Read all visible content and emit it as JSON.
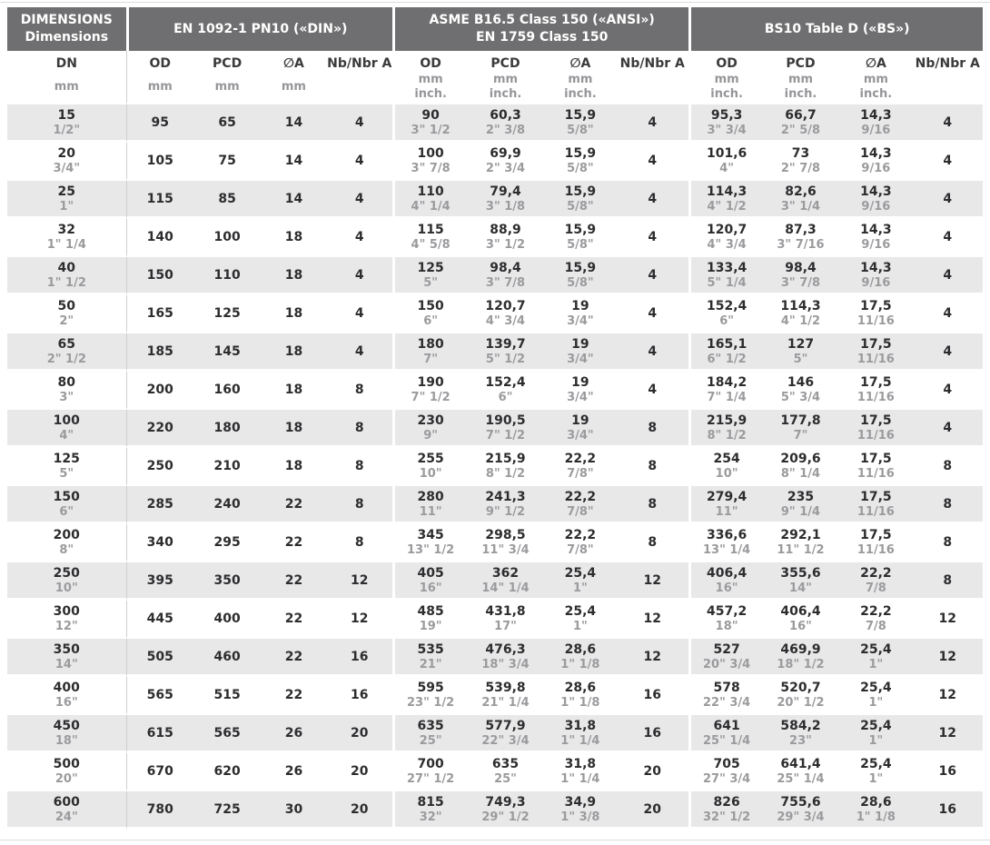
{
  "header": {
    "dim_line1": "DIMENSIONS",
    "dim_line2": "Dimensions",
    "group_din": "EN 1092-1 PN10 («DIN»)",
    "group_ansi_line1": "ASME B16.5 Class 150 («ANSI»)",
    "group_ansi_line2": "EN 1759 Class 150",
    "group_bs": "BS10 Table D («BS»)",
    "columns": [
      {
        "group": "dim",
        "key": "dn",
        "label": "DN",
        "units": [
          "mm"
        ]
      },
      {
        "group": "din",
        "key": "od",
        "label": "OD",
        "units": [
          "mm"
        ]
      },
      {
        "group": "din",
        "key": "pcd",
        "label": "PCD",
        "units": [
          "mm"
        ]
      },
      {
        "group": "din",
        "key": "a",
        "label": "∅A",
        "units": [
          "mm"
        ]
      },
      {
        "group": "din",
        "key": "nb",
        "label": "Nb/Nbr A",
        "units": []
      },
      {
        "group": "asme",
        "key": "od",
        "label": "OD",
        "units": [
          "mm",
          "inch."
        ]
      },
      {
        "group": "asme",
        "key": "pcd",
        "label": "PCD",
        "units": [
          "mm",
          "inch."
        ]
      },
      {
        "group": "asme",
        "key": "a",
        "label": "∅A",
        "units": [
          "mm",
          "inch."
        ]
      },
      {
        "group": "asme",
        "key": "nb",
        "label": "Nb/Nbr A",
        "units": []
      },
      {
        "group": "bs",
        "key": "od",
        "label": "OD",
        "units": [
          "mm",
          "inch."
        ]
      },
      {
        "group": "bs",
        "key": "pcd",
        "label": "PCD",
        "units": [
          "mm",
          "inch."
        ]
      },
      {
        "group": "bs",
        "key": "a",
        "label": "∅A",
        "units": [
          "mm",
          "inch."
        ]
      },
      {
        "group": "bs",
        "key": "nb",
        "label": "Nb/Nbr A",
        "units": []
      }
    ]
  },
  "colors": {
    "header_bg": "#6f6f71",
    "header_text": "#ffffff",
    "stripe_bg": "#e8e8e9",
    "value_text": "#2d2d2f",
    "inch_text": "#9b9b9e"
  },
  "table": {
    "rows": [
      {
        "dn": [
          "15",
          "1/2\""
        ],
        "din": [
          "95",
          "65",
          "14",
          "4"
        ],
        "asme": [
          [
            "90",
            "3\" 1/2"
          ],
          [
            "60,3",
            "2\" 3/8"
          ],
          [
            "15,9",
            "5/8\""
          ],
          "4"
        ],
        "bs": [
          [
            "95,3",
            "3\" 3/4"
          ],
          [
            "66,7",
            "2\" 5/8"
          ],
          [
            "14,3",
            "9/16"
          ],
          "4"
        ]
      },
      {
        "dn": [
          "20",
          "3/4\""
        ],
        "din": [
          "105",
          "75",
          "14",
          "4"
        ],
        "asme": [
          [
            "100",
            "3\" 7/8"
          ],
          [
            "69,9",
            "2\" 3/4"
          ],
          [
            "15,9",
            "5/8\""
          ],
          "4"
        ],
        "bs": [
          [
            "101,6",
            "4\""
          ],
          [
            "73",
            "2\" 7/8"
          ],
          [
            "14,3",
            "9/16"
          ],
          "4"
        ]
      },
      {
        "dn": [
          "25",
          "1\""
        ],
        "din": [
          "115",
          "85",
          "14",
          "4"
        ],
        "asme": [
          [
            "110",
            "4\" 1/4"
          ],
          [
            "79,4",
            "3\" 1/8"
          ],
          [
            "15,9",
            "5/8\""
          ],
          "4"
        ],
        "bs": [
          [
            "114,3",
            "4\" 1/2"
          ],
          [
            "82,6",
            "3\" 1/4"
          ],
          [
            "14,3",
            "9/16"
          ],
          "4"
        ]
      },
      {
        "dn": [
          "32",
          "1\" 1/4"
        ],
        "din": [
          "140",
          "100",
          "18",
          "4"
        ],
        "asme": [
          [
            "115",
            "4\" 5/8"
          ],
          [
            "88,9",
            "3\" 1/2"
          ],
          [
            "15,9",
            "5/8\""
          ],
          "4"
        ],
        "bs": [
          [
            "120,7",
            "4\" 3/4"
          ],
          [
            "87,3",
            "3\" 7/16"
          ],
          [
            "14,3",
            "9/16"
          ],
          "4"
        ]
      },
      {
        "dn": [
          "40",
          "1\" 1/2"
        ],
        "din": [
          "150",
          "110",
          "18",
          "4"
        ],
        "asme": [
          [
            "125",
            "5\""
          ],
          [
            "98,4",
            "3\" 7/8"
          ],
          [
            "15,9",
            "5/8\""
          ],
          "4"
        ],
        "bs": [
          [
            "133,4",
            "5\" 1/4"
          ],
          [
            "98,4",
            "3\" 7/8"
          ],
          [
            "14,3",
            "9/16"
          ],
          "4"
        ]
      },
      {
        "dn": [
          "50",
          "2\""
        ],
        "din": [
          "165",
          "125",
          "18",
          "4"
        ],
        "asme": [
          [
            "150",
            "6\""
          ],
          [
            "120,7",
            "4\" 3/4"
          ],
          [
            "19",
            "3/4\""
          ],
          "4"
        ],
        "bs": [
          [
            "152,4",
            "6\""
          ],
          [
            "114,3",
            "4\" 1/2"
          ],
          [
            "17,5",
            "11/16"
          ],
          "4"
        ]
      },
      {
        "dn": [
          "65",
          "2\" 1/2"
        ],
        "din": [
          "185",
          "145",
          "18",
          "4"
        ],
        "asme": [
          [
            "180",
            "7\""
          ],
          [
            "139,7",
            "5\" 1/2"
          ],
          [
            "19",
            "3/4\""
          ],
          "4"
        ],
        "bs": [
          [
            "165,1",
            "6\" 1/2"
          ],
          [
            "127",
            "5\""
          ],
          [
            "17,5",
            "11/16"
          ],
          "4"
        ]
      },
      {
        "dn": [
          "80",
          "3\""
        ],
        "din": [
          "200",
          "160",
          "18",
          "8"
        ],
        "asme": [
          [
            "190",
            "7\" 1/2"
          ],
          [
            "152,4",
            "6\""
          ],
          [
            "19",
            "3/4\""
          ],
          "4"
        ],
        "bs": [
          [
            "184,2",
            "7\" 1/4"
          ],
          [
            "146",
            "5\" 3/4"
          ],
          [
            "17,5",
            "11/16"
          ],
          "4"
        ]
      },
      {
        "dn": [
          "100",
          "4\""
        ],
        "din": [
          "220",
          "180",
          "18",
          "8"
        ],
        "asme": [
          [
            "230",
            "9\""
          ],
          [
            "190,5",
            "7\" 1/2"
          ],
          [
            "19",
            "3/4\""
          ],
          "8"
        ],
        "bs": [
          [
            "215,9",
            "8\" 1/2"
          ],
          [
            "177,8",
            "7\""
          ],
          [
            "17,5",
            "11/16"
          ],
          "4"
        ]
      },
      {
        "dn": [
          "125",
          "5\""
        ],
        "din": [
          "250",
          "210",
          "18",
          "8"
        ],
        "asme": [
          [
            "255",
            "10\""
          ],
          [
            "215,9",
            "8\" 1/2"
          ],
          [
            "22,2",
            "7/8\""
          ],
          "8"
        ],
        "bs": [
          [
            "254",
            "10\""
          ],
          [
            "209,6",
            "8\" 1/4"
          ],
          [
            "17,5",
            "11/16"
          ],
          "8"
        ]
      },
      {
        "dn": [
          "150",
          "6\""
        ],
        "din": [
          "285",
          "240",
          "22",
          "8"
        ],
        "asme": [
          [
            "280",
            "11\""
          ],
          [
            "241,3",
            "9\" 1/2"
          ],
          [
            "22,2",
            "7/8\""
          ],
          "8"
        ],
        "bs": [
          [
            "279,4",
            "11\""
          ],
          [
            "235",
            "9\" 1/4"
          ],
          [
            "17,5",
            "11/16"
          ],
          "8"
        ]
      },
      {
        "dn": [
          "200",
          "8\""
        ],
        "din": [
          "340",
          "295",
          "22",
          "8"
        ],
        "asme": [
          [
            "345",
            "13\" 1/2"
          ],
          [
            "298,5",
            "11\" 3/4"
          ],
          [
            "22,2",
            "7/8\""
          ],
          "8"
        ],
        "bs": [
          [
            "336,6",
            "13\" 1/4"
          ],
          [
            "292,1",
            "11\" 1/2"
          ],
          [
            "17,5",
            "11/16"
          ],
          "8"
        ]
      },
      {
        "dn": [
          "250",
          "10\""
        ],
        "din": [
          "395",
          "350",
          "22",
          "12"
        ],
        "asme": [
          [
            "405",
            "16\""
          ],
          [
            "362",
            "14\" 1/4"
          ],
          [
            "25,4",
            "1\""
          ],
          "12"
        ],
        "bs": [
          [
            "406,4",
            "16\""
          ],
          [
            "355,6",
            "14\""
          ],
          [
            "22,2",
            "7/8"
          ],
          "8"
        ]
      },
      {
        "dn": [
          "300",
          "12\""
        ],
        "din": [
          "445",
          "400",
          "22",
          "12"
        ],
        "asme": [
          [
            "485",
            "19\""
          ],
          [
            "431,8",
            "17\""
          ],
          [
            "25,4",
            "1\""
          ],
          "12"
        ],
        "bs": [
          [
            "457,2",
            "18\""
          ],
          [
            "406,4",
            "16\""
          ],
          [
            "22,2",
            "7/8"
          ],
          "12"
        ]
      },
      {
        "dn": [
          "350",
          "14\""
        ],
        "din": [
          "505",
          "460",
          "22",
          "16"
        ],
        "asme": [
          [
            "535",
            "21\""
          ],
          [
            "476,3",
            "18\" 3/4"
          ],
          [
            "28,6",
            "1\" 1/8"
          ],
          "12"
        ],
        "bs": [
          [
            "527",
            "20\" 3/4"
          ],
          [
            "469,9",
            "18\" 1/2"
          ],
          [
            "25,4",
            "1\""
          ],
          "12"
        ]
      },
      {
        "dn": [
          "400",
          "16\""
        ],
        "din": [
          "565",
          "515",
          "22",
          "16"
        ],
        "asme": [
          [
            "595",
            "23\" 1/2"
          ],
          [
            "539,8",
            "21\" 1/4"
          ],
          [
            "28,6",
            "1\" 1/8"
          ],
          "16"
        ],
        "bs": [
          [
            "578",
            "22\" 3/4"
          ],
          [
            "520,7",
            "20\" 1/2"
          ],
          [
            "25,4",
            "1\""
          ],
          "12"
        ]
      },
      {
        "dn": [
          "450",
          "18\""
        ],
        "din": [
          "615",
          "565",
          "26",
          "20"
        ],
        "asme": [
          [
            "635",
            "25\""
          ],
          [
            "577,9",
            "22\" 3/4"
          ],
          [
            "31,8",
            "1\" 1/4"
          ],
          "16"
        ],
        "bs": [
          [
            "641",
            "25\" 1/4"
          ],
          [
            "584,2",
            "23\""
          ],
          [
            "25,4",
            "1\""
          ],
          "12"
        ]
      },
      {
        "dn": [
          "500",
          "20\""
        ],
        "din": [
          "670",
          "620",
          "26",
          "20"
        ],
        "asme": [
          [
            "700",
            "27\" 1/2"
          ],
          [
            "635",
            "25\""
          ],
          [
            "31,8",
            "1\" 1/4"
          ],
          "20"
        ],
        "bs": [
          [
            "705",
            "27\" 3/4"
          ],
          [
            "641,4",
            "25\" 1/4"
          ],
          [
            "25,4",
            "1\""
          ],
          "16"
        ]
      },
      {
        "dn": [
          "600",
          "24\""
        ],
        "din": [
          "780",
          "725",
          "30",
          "20"
        ],
        "asme": [
          [
            "815",
            "32\""
          ],
          [
            "749,3",
            "29\" 1/2"
          ],
          [
            "34,9",
            "1\" 3/8"
          ],
          "20"
        ],
        "bs": [
          [
            "826",
            "32\" 1/2"
          ],
          [
            "755,6",
            "29\" 3/4"
          ],
          [
            "28,6",
            "1\" 1/8"
          ],
          "16"
        ]
      }
    ]
  }
}
